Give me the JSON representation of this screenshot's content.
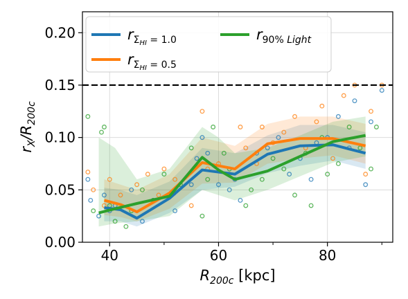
{
  "chart_data": {
    "type": "line",
    "xlabel": {
      "main": "R",
      "sub": "200c",
      "unit": " [kpc]"
    },
    "ylabel": {
      "num": "r",
      "num_sub": "X",
      "slash": "/",
      "den": "R",
      "den_sub": "200c"
    },
    "xlim": [
      35,
      92
    ],
    "ylim": [
      0,
      0.22
    ],
    "x_ticks": [
      40,
      60,
      80
    ],
    "x_minor_ticks": [
      50,
      70,
      90
    ],
    "x_tick_labels": [
      "40",
      "60",
      "80"
    ],
    "y_ticks": [
      0.0,
      0.05,
      0.1,
      0.15,
      0.2
    ],
    "y_tick_labels": [
      "0.00",
      "0.05",
      "0.10",
      "0.15",
      "0.20"
    ],
    "grid": true,
    "legend_position": "top",
    "hline": {
      "y": 0.15,
      "style": "dashed",
      "color": "#000000"
    },
    "series": [
      {
        "name": "r_{Σ_HI = 1.0}",
        "legend": {
          "main": "r",
          "sub": "ΣHI = 1.0",
          "sub_main": "Σ",
          "sub_sub": "HI",
          "sub_rest": " = 1.0"
        },
        "color": "#1f77b4",
        "x": [
          39,
          42,
          45,
          51,
          57,
          63,
          69,
          75,
          81,
          87
        ],
        "y": [
          0.033,
          0.031,
          0.023,
          0.042,
          0.069,
          0.065,
          0.084,
          0.092,
          0.093,
          0.085
        ],
        "band_low": [
          0.02,
          0.02,
          0.015,
          0.028,
          0.05,
          0.053,
          0.066,
          0.073,
          0.078,
          0.07
        ],
        "band_high": [
          0.052,
          0.05,
          0.045,
          0.058,
          0.09,
          0.085,
          0.102,
          0.112,
          0.112,
          0.105
        ],
        "points": [
          [
            36,
            0.06
          ],
          [
            36.5,
            0.04
          ],
          [
            38,
            0.025
          ],
          [
            39,
            0.045
          ],
          [
            40,
            0.03
          ],
          [
            41,
            0.035
          ],
          [
            44,
            0.05
          ],
          [
            46,
            0.02
          ],
          [
            48,
            0.04
          ],
          [
            51,
            0.045
          ],
          [
            52,
            0.03
          ],
          [
            55,
            0.055
          ],
          [
            56,
            0.08
          ],
          [
            57,
            0.1
          ],
          [
            58,
            0.085
          ],
          [
            60,
            0.055
          ],
          [
            62,
            0.05
          ],
          [
            63,
            0.06
          ],
          [
            64,
            0.04
          ],
          [
            67,
            0.085
          ],
          [
            69,
            0.09
          ],
          [
            71,
            0.1
          ],
          [
            73,
            0.065
          ],
          [
            75,
            0.08
          ],
          [
            77,
            0.06
          ],
          [
            78,
            0.095
          ],
          [
            80,
            0.1
          ],
          [
            82,
            0.12
          ],
          [
            84,
            0.09
          ],
          [
            85,
            0.135
          ],
          [
            87,
            0.055
          ],
          [
            88,
            0.115
          ],
          [
            90,
            0.145
          ]
        ]
      },
      {
        "name": "r_{Σ_HI = 0.5}",
        "legend": {
          "main": "r",
          "sub": "ΣHI = 0.5",
          "sub_main": "Σ",
          "sub_sub": "HI",
          "sub_rest": " = 0.5"
        },
        "color": "#ff7f0e",
        "x": [
          39,
          42,
          45,
          51,
          57,
          63,
          69,
          75,
          81,
          87
        ],
        "y": [
          0.04,
          0.036,
          0.029,
          0.047,
          0.076,
          0.07,
          0.094,
          0.099,
          0.099,
          0.092
        ],
        "band_low": [
          0.026,
          0.024,
          0.02,
          0.032,
          0.056,
          0.057,
          0.075,
          0.08,
          0.083,
          0.075
        ],
        "band_high": [
          0.06,
          0.055,
          0.05,
          0.065,
          0.1,
          0.092,
          0.113,
          0.12,
          0.12,
          0.113
        ],
        "points": [
          [
            36,
            0.067
          ],
          [
            37,
            0.05
          ],
          [
            39,
            0.035
          ],
          [
            40,
            0.06
          ],
          [
            42,
            0.045
          ],
          [
            45,
            0.055
          ],
          [
            47,
            0.065
          ],
          [
            49,
            0.045
          ],
          [
            50,
            0.07
          ],
          [
            52,
            0.06
          ],
          [
            55,
            0.035
          ],
          [
            57,
            0.125
          ],
          [
            58,
            0.07
          ],
          [
            60,
            0.075
          ],
          [
            62,
            0.065
          ],
          [
            64,
            0.11
          ],
          [
            65,
            0.09
          ],
          [
            67,
            0.075
          ],
          [
            68,
            0.11
          ],
          [
            70,
            0.095
          ],
          [
            72,
            0.105
          ],
          [
            74,
            0.12
          ],
          [
            76,
            0.09
          ],
          [
            78,
            0.115
          ],
          [
            79,
            0.13
          ],
          [
            81,
            0.08
          ],
          [
            83,
            0.14
          ],
          [
            85,
            0.15
          ],
          [
            87,
            0.065
          ],
          [
            88,
            0.125
          ],
          [
            90,
            0.15
          ]
        ]
      },
      {
        "name": "r_{90% Light}",
        "legend": {
          "main": "r",
          "sub": "90% Light",
          "sub_main": "",
          "sub_sub": "",
          "sub_rest": "90% Light"
        },
        "color": "#2ca02c",
        "x": [
          38,
          41,
          45,
          51,
          57,
          60,
          63,
          69,
          75,
          81,
          87
        ],
        "y": [
          0.028,
          0.032,
          0.037,
          0.044,
          0.081,
          0.069,
          0.06,
          0.068,
          0.082,
          0.096,
          0.102
        ],
        "band_low": [
          0.015,
          0.018,
          0.02,
          0.025,
          0.05,
          0.045,
          0.04,
          0.05,
          0.063,
          0.076,
          0.082
        ],
        "band_high": [
          0.1,
          0.09,
          0.06,
          0.07,
          0.11,
          0.1,
          0.085,
          0.09,
          0.102,
          0.115,
          0.12
        ],
        "points": [
          [
            36,
            0.12
          ],
          [
            37,
            0.03
          ],
          [
            38.5,
            0.105
          ],
          [
            39,
            0.11
          ],
          [
            40,
            0.035
          ],
          [
            41,
            0.02
          ],
          [
            43,
            0.015
          ],
          [
            44,
            0.03
          ],
          [
            46,
            0.05
          ],
          [
            48,
            0.04
          ],
          [
            50,
            0.065
          ],
          [
            53,
            0.055
          ],
          [
            55,
            0.09
          ],
          [
            57,
            0.025
          ],
          [
            58,
            0.06
          ],
          [
            59,
            0.11
          ],
          [
            61,
            0.085
          ],
          [
            62,
            0.07
          ],
          [
            65,
            0.035
          ],
          [
            66,
            0.05
          ],
          [
            68,
            0.06
          ],
          [
            70,
            0.08
          ],
          [
            72,
            0.07
          ],
          [
            74,
            0.045
          ],
          [
            76,
            0.085
          ],
          [
            77,
            0.035
          ],
          [
            79,
            0.1
          ],
          [
            80,
            0.065
          ],
          [
            82,
            0.075
          ],
          [
            84,
            0.11
          ],
          [
            86,
            0.09
          ],
          [
            88,
            0.07
          ],
          [
            89,
            0.11
          ]
        ]
      }
    ]
  }
}
